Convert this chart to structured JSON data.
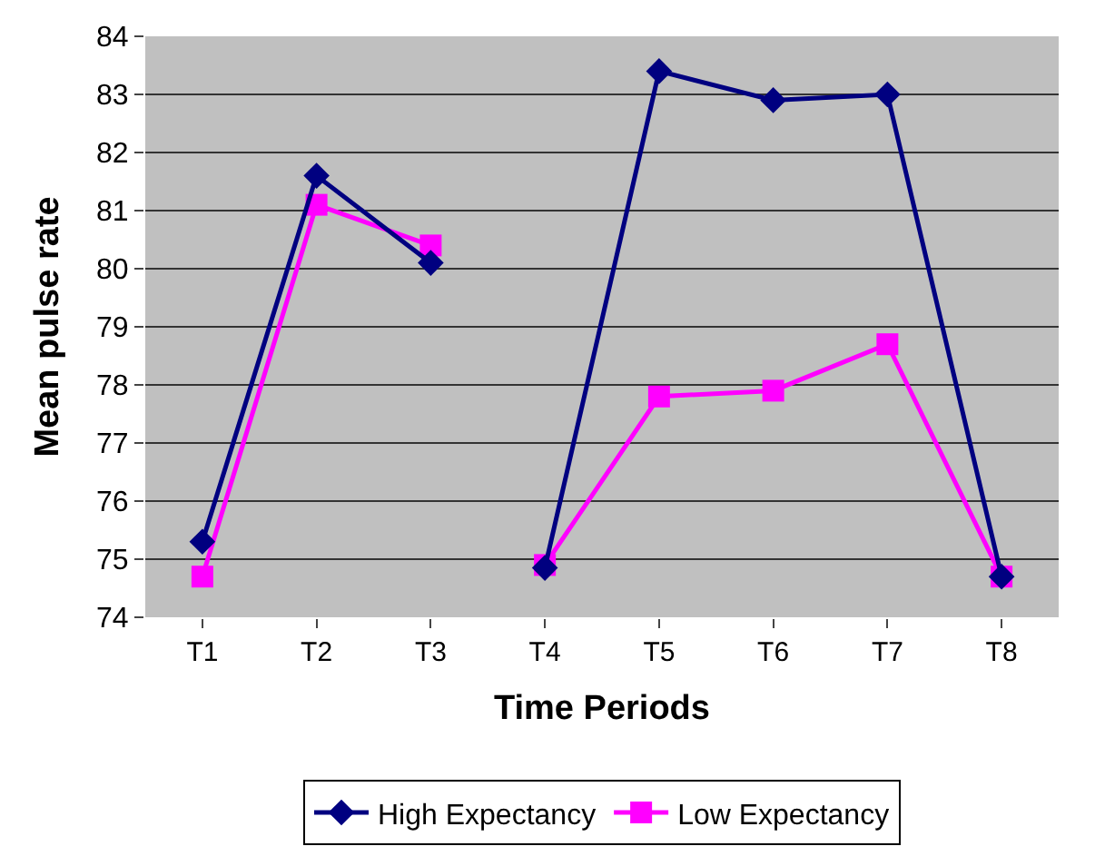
{
  "chart_data": {
    "type": "line",
    "xlabel": "Time Periods",
    "ylabel": "Mean pulse rate",
    "categories": [
      "T1",
      "T2",
      "T3",
      "T4",
      "T5",
      "T6",
      "T7",
      "T8"
    ],
    "series": [
      {
        "name": "High Expectancy",
        "color": "#000080",
        "marker": "diamond",
        "values": [
          75.3,
          81.6,
          80.1,
          null,
          null,
          null,
          null,
          null
        ]
      },
      {
        "color": "#000080",
        "marker": "diamond",
        "values": [
          null,
          null,
          null,
          74.85,
          83.4,
          82.9,
          83.0,
          74.7
        ]
      },
      {
        "name": "Low Expectancy",
        "color": "#ff00ff",
        "marker": "square",
        "values": [
          74.7,
          81.1,
          80.4,
          null,
          null,
          null,
          null,
          null
        ]
      },
      {
        "color": "#ff00ff",
        "marker": "square",
        "values": [
          null,
          null,
          null,
          74.9,
          77.8,
          77.9,
          78.7,
          74.7
        ]
      }
    ],
    "ylim": [
      74,
      84
    ],
    "yticks": [
      74,
      75,
      76,
      77,
      78,
      79,
      80,
      81,
      82,
      83,
      84
    ],
    "grid": "y",
    "legend": "bottom"
  }
}
